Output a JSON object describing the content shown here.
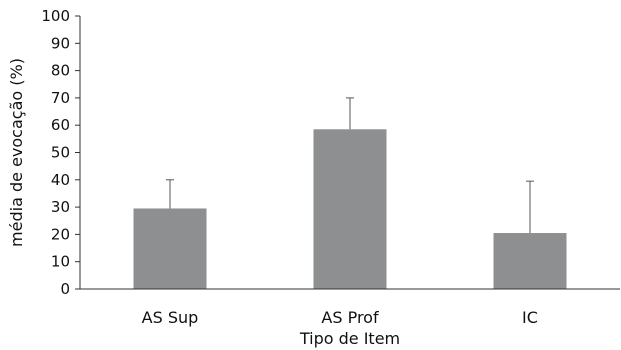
{
  "chart_data": {
    "type": "bar",
    "title": "",
    "xlabel": "Tipo de Item",
    "ylabel": "média de evocação (%)",
    "categories": [
      "AS Sup",
      "AS Prof",
      "IC"
    ],
    "values": [
      29.5,
      58.5,
      20.5
    ],
    "error_upper": [
      40,
      70,
      39.5
    ],
    "ylim": [
      0,
      100
    ],
    "yticks": [
      0,
      10,
      20,
      30,
      40,
      50,
      60,
      70,
      80,
      90,
      100
    ],
    "grid": false,
    "legend": "none",
    "bar_color": "#8e8f91",
    "error_color": "#555555",
    "axis_color": "#333333"
  }
}
